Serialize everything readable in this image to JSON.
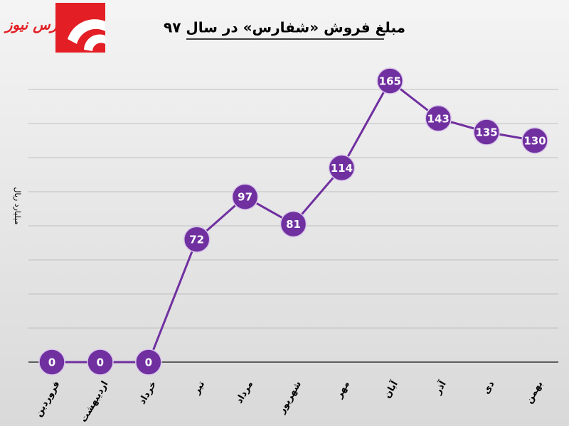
{
  "logo": "بورس نیوز",
  "chart_data": {
    "type": "line",
    "title": "مبلغ فروش «شفارس» در سال ۹۷",
    "y_label": "میلیارد ریال",
    "categories": [
      "فروردین",
      "اردیبهشت",
      "خرداد",
      "تیر",
      "مرداد",
      "شهریور",
      "مهر",
      "آبان",
      "آذر",
      "دی",
      "بهمن"
    ],
    "series": [
      {
        "name": "مبلغ فروش",
        "color": "#7030a0",
        "values": [
          0,
          0,
          0,
          72,
          97,
          81,
          114,
          165,
          143,
          135,
          130
        ]
      }
    ],
    "ylim": [
      0,
      180
    ],
    "yticks": [
      0,
      20,
      40,
      60,
      80,
      100,
      120,
      140,
      160
    ],
    "grid": true
  }
}
